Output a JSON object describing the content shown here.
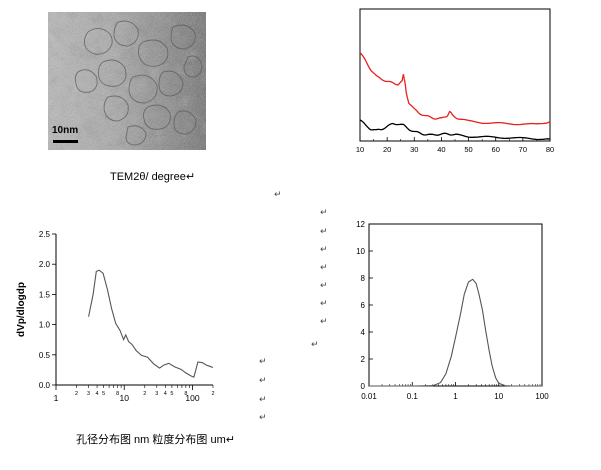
{
  "tem_panel": {
    "scalebar_label": "10nm"
  },
  "captions": {
    "top": "TEM2θ/ degree↵",
    "bottom": "孔径分布图 nm 粒度分布图 um↵"
  },
  "return_mark": "↵",
  "chart_data": [
    {
      "type": "line",
      "panel": "xrd",
      "title": "",
      "xlabel": "",
      "ylabel": "",
      "xlim": [
        10,
        80
      ],
      "x_ticks": [
        10,
        20,
        30,
        40,
        50,
        60,
        70,
        80
      ],
      "grid": false,
      "series": [
        {
          "color": "#e8201c",
          "x": [
            10,
            12,
            14,
            16,
            18,
            20,
            22,
            24,
            25.5,
            26,
            26.5,
            27,
            28,
            30,
            32,
            34,
            36,
            38,
            40,
            42,
            43,
            44,
            46,
            50,
            55,
            60,
            65,
            70,
            75,
            78,
            80
          ],
          "y": [
            0.67,
            0.61,
            0.54,
            0.49,
            0.47,
            0.45,
            0.44,
            0.43,
            0.45,
            0.51,
            0.45,
            0.37,
            0.29,
            0.24,
            0.21,
            0.19,
            0.18,
            0.17,
            0.17,
            0.19,
            0.22,
            0.2,
            0.17,
            0.15,
            0.14,
            0.135,
            0.13,
            0.13,
            0.125,
            0.14,
            0.14
          ]
        },
        {
          "color": "#000000",
          "x": [
            10,
            12,
            14,
            16,
            18,
            20,
            22,
            24,
            26,
            28,
            30,
            32,
            34,
            36,
            38,
            40,
            42,
            44,
            46,
            50,
            55,
            60,
            65,
            70,
            75,
            80
          ],
          "y": [
            0.16,
            0.12,
            0.09,
            0.08,
            0.09,
            0.11,
            0.13,
            0.13,
            0.12,
            0.09,
            0.07,
            0.06,
            0.05,
            0.045,
            0.05,
            0.05,
            0.055,
            0.05,
            0.045,
            0.035,
            0.03,
            0.028,
            0.025,
            0.02,
            0.018,
            0.015
          ]
        }
      ]
    },
    {
      "type": "line",
      "panel": "pore-size",
      "title": "",
      "xlabel": "",
      "ylabel": "dVp/dlogdp",
      "x_scale": "log",
      "xlim": [
        1,
        200
      ],
      "ylim": [
        0,
        2.5
      ],
      "y_ticks": [
        "0.0",
        "0.5",
        "1.0",
        "1.5",
        "2.0",
        "2.5"
      ],
      "x_major_ticks": [
        1,
        10,
        100
      ],
      "x_minor_ticks": [
        2,
        3,
        4,
        5,
        6,
        7,
        8,
        9,
        20,
        30,
        40,
        50,
        60,
        70,
        80,
        90,
        200
      ],
      "grid": false,
      "series": [
        {
          "color": "#555555",
          "x": [
            3.0,
            3.5,
            3.9,
            4.3,
            4.9,
            5.7,
            6.5,
            7.5,
            8.7,
            9.8,
            10.5,
            11.6,
            13,
            15,
            18,
            22,
            27,
            33,
            38,
            45,
            55,
            68,
            80,
            95,
            105,
            120,
            140,
            160,
            180,
            200
          ],
          "y": [
            1.13,
            1.5,
            1.88,
            1.9,
            1.85,
            1.57,
            1.27,
            1.02,
            0.9,
            0.75,
            0.83,
            0.72,
            0.67,
            0.57,
            0.49,
            0.46,
            0.35,
            0.28,
            0.33,
            0.36,
            0.3,
            0.26,
            0.2,
            0.15,
            0.13,
            0.38,
            0.37,
            0.33,
            0.31,
            0.29
          ]
        }
      ]
    },
    {
      "type": "line",
      "panel": "particle-size",
      "title": "",
      "xlabel": "",
      "ylabel": "",
      "x_scale": "log",
      "xlim": [
        0.01,
        100
      ],
      "ylim": [
        0,
        12
      ],
      "y_ticks": [
        0,
        2,
        4,
        6,
        8,
        10,
        12
      ],
      "x_major_ticks": [
        0.01,
        0.1,
        1,
        10,
        100
      ],
      "x_tick_labels": [
        "0.01",
        "0.1",
        "1",
        "10",
        "100"
      ],
      "grid": false,
      "series": [
        {
          "color": "#555555",
          "x": [
            0.01,
            0.1,
            0.3,
            0.45,
            0.6,
            0.8,
            1.0,
            1.3,
            1.6,
            2.0,
            2.5,
            3.0,
            3.5,
            4.2,
            5.0,
            6.0,
            7.0,
            8.5,
            10,
            14,
            20,
            100
          ],
          "y": [
            0,
            0,
            0.02,
            0.25,
            0.9,
            2.2,
            3.6,
            5.3,
            6.8,
            7.7,
            7.9,
            7.6,
            6.8,
            5.6,
            4.1,
            2.6,
            1.5,
            0.6,
            0.2,
            0.02,
            0,
            0
          ]
        }
      ]
    }
  ]
}
